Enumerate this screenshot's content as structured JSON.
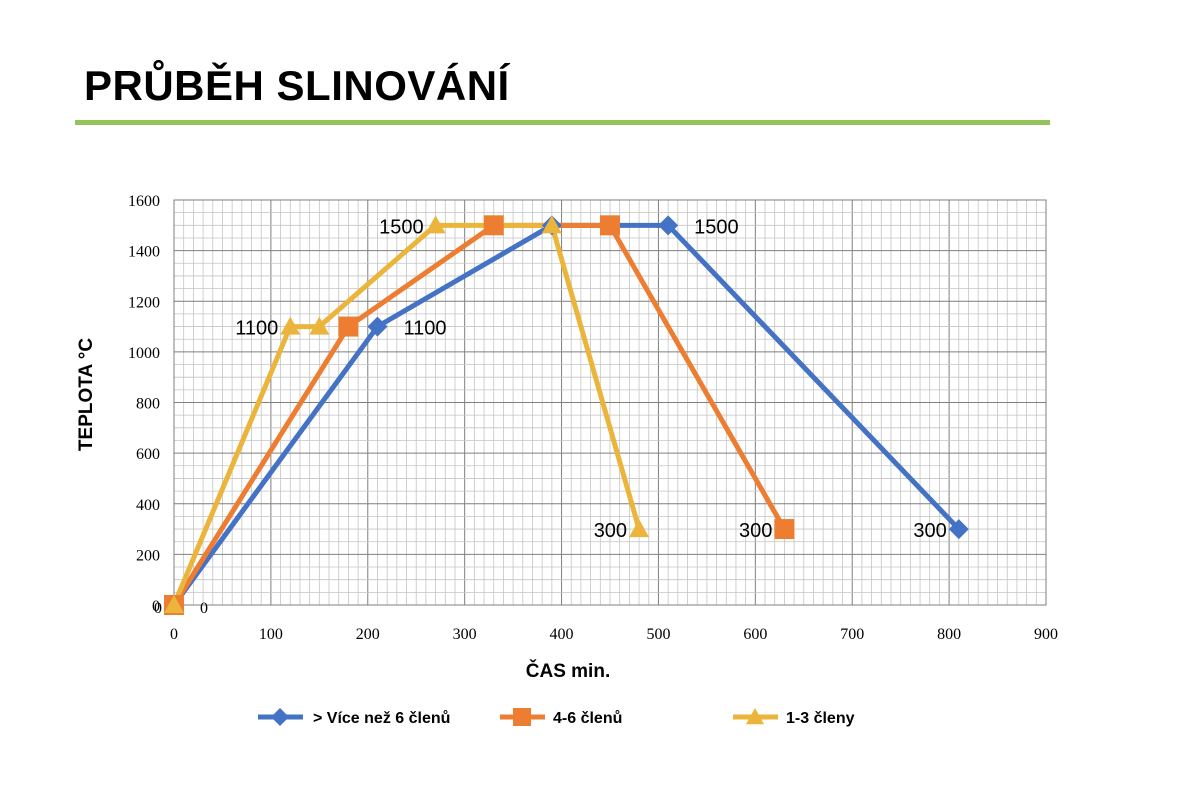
{
  "header": {
    "title": "PRŮBĚH SLINOVÁNÍ",
    "rule_color": "#92C45A"
  },
  "chart_data": {
    "type": "line",
    "title": "",
    "xlabel": "ČAS min.",
    "ylabel": "TEPLOTA °C",
    "xlim": [
      0,
      900
    ],
    "ylim": [
      0,
      1600
    ],
    "x_ticks": [
      0,
      100,
      200,
      300,
      400,
      500,
      600,
      700,
      800,
      900
    ],
    "y_ticks": [
      0,
      200,
      400,
      600,
      800,
      1000,
      1200,
      1400,
      1600
    ],
    "grid": true,
    "legend_position": "bottom",
    "series": [
      {
        "name": "> Více než 6 členů",
        "color": "#4472C4",
        "marker": "diamond",
        "points": [
          [
            0,
            0
          ],
          [
            210,
            1100
          ],
          [
            390,
            1500
          ],
          [
            510,
            1500
          ],
          [
            810,
            300
          ]
        ]
      },
      {
        "name": "4-6 členů",
        "color": "#ED7D31",
        "marker": "square",
        "points": [
          [
            0,
            0
          ],
          [
            180,
            1100
          ],
          [
            330,
            1500
          ],
          [
            450,
            1500
          ],
          [
            630,
            300
          ]
        ]
      },
      {
        "name": "1-3 členy",
        "color": "#EBB43A",
        "marker": "triangle",
        "points": [
          [
            0,
            0
          ],
          [
            120,
            1100
          ],
          [
            150,
            1100
          ],
          [
            270,
            1500
          ],
          [
            390,
            1500
          ],
          [
            480,
            300
          ]
        ]
      }
    ],
    "annotations": [
      {
        "text": "0",
        "x": 0,
        "y": 0,
        "side": "left"
      },
      {
        "text": "0",
        "x": 0,
        "y": 0,
        "side": "right"
      },
      {
        "text": "1100",
        "x": 120,
        "y": 1100,
        "side": "left"
      },
      {
        "text": "1100",
        "x": 210,
        "y": 1100,
        "side": "right"
      },
      {
        "text": "1500",
        "x": 270,
        "y": 1500,
        "side": "left"
      },
      {
        "text": "1500",
        "x": 510,
        "y": 1500,
        "side": "right"
      },
      {
        "text": "300",
        "x": 480,
        "y": 300,
        "side": "left"
      },
      {
        "text": "300",
        "x": 630,
        "y": 300,
        "side": "left"
      },
      {
        "text": "300",
        "x": 810,
        "y": 300,
        "side": "left"
      }
    ]
  }
}
